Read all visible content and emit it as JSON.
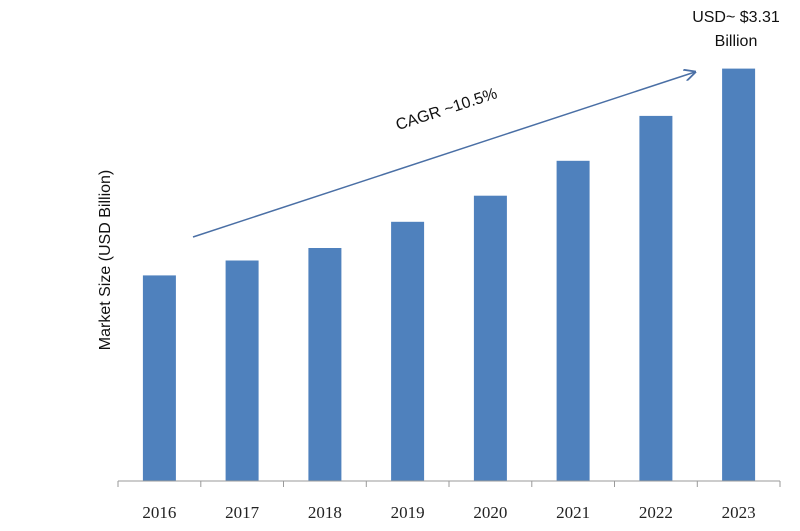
{
  "chart_data": {
    "type": "bar",
    "ylabel": "Market Size (USD Billion)",
    "categories": [
      "2016",
      "2017",
      "2018",
      "2019",
      "2020",
      "2021",
      "2022",
      "2023"
    ],
    "values": [
      1.65,
      1.77,
      1.87,
      2.08,
      2.29,
      2.57,
      2.93,
      3.31
    ],
    "ylim": [
      0,
      3.7
    ],
    "bar_color": "#4f81bd",
    "annotations": {
      "last_value_line1": "USD~ $3.31",
      "last_value_line2": "Billion",
      "cagr": "CAGR ~10.5%"
    }
  }
}
